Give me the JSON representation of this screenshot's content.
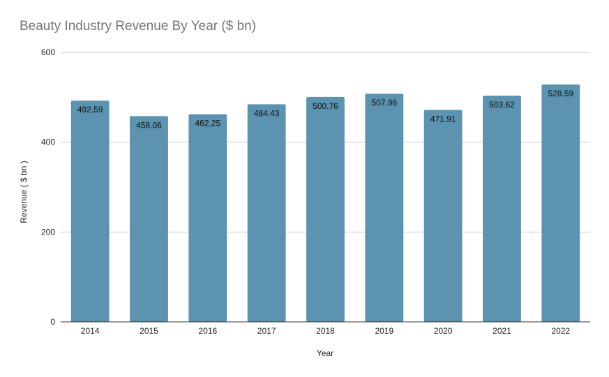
{
  "chart_data": {
    "type": "bar",
    "title": "Beauty Industry Revenue By Year ($ bn)",
    "xlabel": "Year",
    "ylabel": "Revenue ( $ bn )",
    "categories": [
      "2014",
      "2015",
      "2016",
      "2017",
      "2018",
      "2019",
      "2020",
      "2021",
      "2022"
    ],
    "values": [
      492.59,
      458.06,
      462.25,
      484.43,
      500.76,
      507.96,
      471.91,
      503.62,
      528.59
    ],
    "data_labels": [
      "492.59",
      "458.06",
      "462.25",
      "484.43",
      "500.76",
      "507.96",
      "471.91",
      "503.62",
      "528.59"
    ],
    "ylim": [
      0,
      600
    ],
    "yticks": [
      "0",
      "200",
      "400",
      "600"
    ],
    "grid": true,
    "bar_color": "#5b93b0"
  }
}
